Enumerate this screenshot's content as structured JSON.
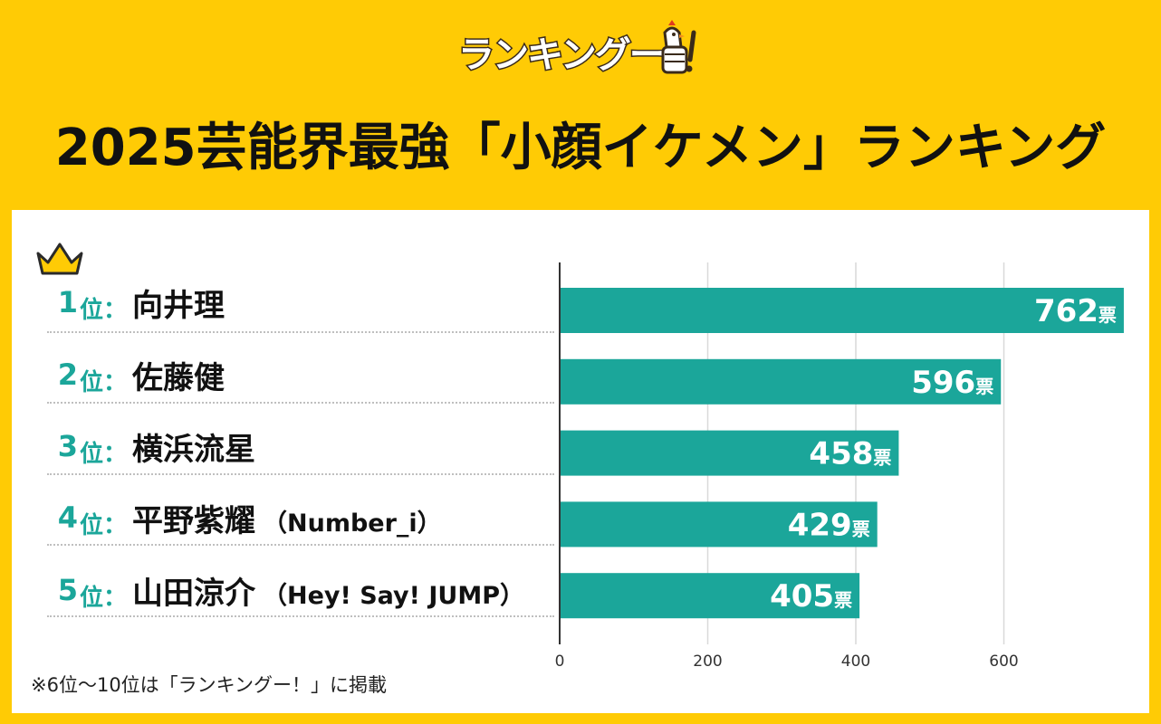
{
  "logo": {
    "text": "ランキングー!",
    "icon": "thumbs-up-bird-icon"
  },
  "title": "2025芸能界最強「小顔イケメン」ランキング",
  "colors": {
    "background": "#FFCB05",
    "bar": "#1BA69A",
    "rank": "#1BA69A",
    "text": "#111111"
  },
  "rankings": [
    {
      "rank": "1",
      "suffix": "位：",
      "name": "向井理",
      "group": ""
    },
    {
      "rank": "2",
      "suffix": "位：",
      "name": "佐藤健",
      "group": ""
    },
    {
      "rank": "3",
      "suffix": "位：",
      "name": "横浜流星",
      "group": ""
    },
    {
      "rank": "4",
      "suffix": "位：",
      "name": "平野紫耀",
      "group": "（Number_i）"
    },
    {
      "rank": "5",
      "suffix": "位：",
      "name": "山田涼介",
      "group": "（Hey! Say! JUMP）"
    }
  ],
  "chart_data": {
    "type": "bar",
    "orientation": "horizontal",
    "categories": [
      "向井理",
      "佐藤健",
      "横浜流星",
      "平野紫耀",
      "山田涼介"
    ],
    "values": [
      762,
      596,
      458,
      429,
      405
    ],
    "value_unit": "票",
    "xlim": [
      0,
      750
    ],
    "xticks": [
      0,
      200,
      400,
      600
    ],
    "grid": true,
    "title": "",
    "xlabel": "",
    "ylabel": ""
  },
  "footnote": "※6位〜10位は「ランキングー！」に掲載"
}
